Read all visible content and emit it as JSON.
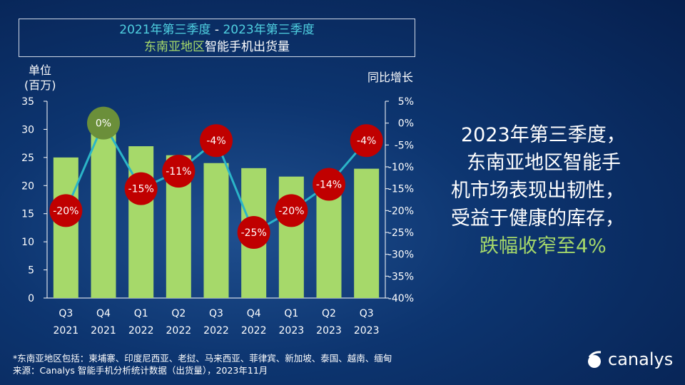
{
  "header": {
    "line1_part1": "2021年第三季度",
    "line1_sep": " - ",
    "line1_part2": "2023年第三季度",
    "line2_part1": "东南亚地区",
    "line2_part2": "智能手机出货量"
  },
  "chart_data": {
    "type": "bar+line",
    "categories": [
      "Q3 2021",
      "Q4 2021",
      "Q1 2022",
      "Q2 2022",
      "Q3 2022",
      "Q4 2022",
      "Q1 2023",
      "Q2 2023",
      "Q3 2023"
    ],
    "category_lines": [
      [
        "Q3",
        "2021"
      ],
      [
        "Q4",
        "2021"
      ],
      [
        "Q1",
        "2022"
      ],
      [
        "Q2",
        "2022"
      ],
      [
        "Q3",
        "2022"
      ],
      [
        "Q4",
        "2022"
      ],
      [
        "Q1",
        "2023"
      ],
      [
        "Q2",
        "2023"
      ],
      [
        "Q3",
        "2023"
      ]
    ],
    "left_axis": {
      "label_line1": "单位",
      "label_line2": "(百万)",
      "ylim": [
        0,
        35
      ],
      "ticks": [
        "0",
        "5",
        "10",
        "15",
        "20",
        "25",
        "30",
        "35"
      ]
    },
    "right_axis": {
      "label": "同比增长",
      "ylim": [
        -40,
        5
      ],
      "ticks": [
        "5%",
        "0%",
        "-5%",
        "-10%",
        "-15%",
        "-20%",
        "-25%",
        "-30%",
        "-35%",
        "-40%"
      ]
    },
    "series": [
      {
        "type": "bar",
        "values": [
          25.0,
          30.8,
          27.0,
          25.4,
          24.0,
          23.1,
          21.6,
          21.9,
          23.0
        ],
        "color": "#a6d96a",
        "axis": "left"
      },
      {
        "type": "line",
        "values": [
          -20,
          0,
          -15,
          -11,
          -4,
          -25,
          -20,
          -14,
          -4
        ],
        "labels": [
          "-20%",
          "0%",
          "-15%",
          "-11%",
          "-4%",
          "-25%",
          "-20%",
          "-14%",
          "-4%"
        ],
        "color": "#2bb5c8",
        "marker_color": "#c00000",
        "positive_marker_color": "#6b8f3a",
        "axis": "right"
      }
    ]
  },
  "side": {
    "line1": "2023年第三季度，",
    "line2": "东南亚地区智能手",
    "line3": "机市场表现出韧性，",
    "line4": "受益于健康的库存，",
    "line5": "跌幅收窄至4%"
  },
  "footer": {
    "note": "*东南亚地区包括：柬埔寨、印度尼西亚、老挝、马来西亚、菲律宾、新加坡、泰国、越南、缅甸",
    "source": "来源：Canalys 智能手机分析统计数据（出货量），2023年11月"
  },
  "logo": {
    "text": "canalys"
  }
}
